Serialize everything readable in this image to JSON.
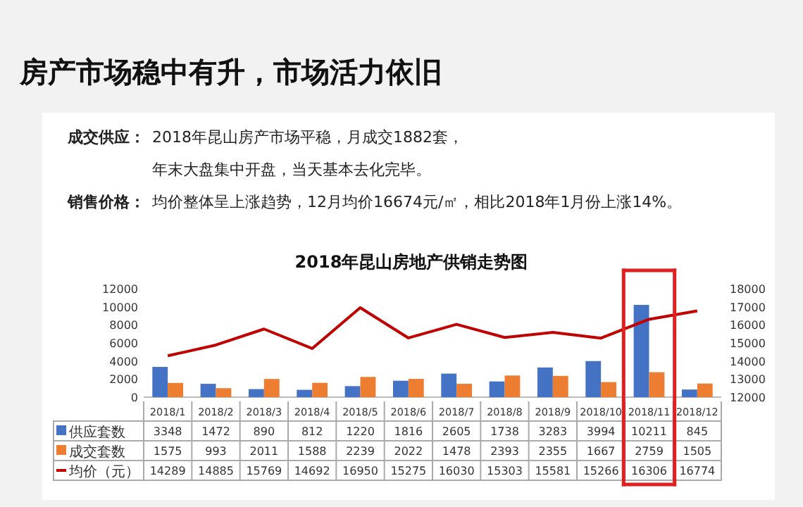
{
  "chart_data": {
    "type": "bar",
    "title": "2018年昆山房地产供销走势图",
    "annotations": [
      "房产市场稳中有升，市场活力依旧",
      "成交供应：",
      "2018年昆山房产市场平稳，月成交1882套，",
      "年末大盘集中开盘，当天基本去化完毕。",
      "销售价格：",
      "均价整体呈上涨趋势，12月均价16674元/㎡，相比2018年1月份上涨14%。"
    ],
    "categories": [
      "2018/1",
      "2018/2",
      "2018/3",
      "2018/4",
      "2018/5",
      "2018/6",
      "2018/7",
      "2018/8",
      "2018/9",
      "2018/10",
      "2018/11",
      "2018/12"
    ],
    "series": [
      {
        "name": "供应套数",
        "color": "#4472c4",
        "values": [
          3348,
          1472,
          890,
          812,
          1220,
          1816,
          2605,
          1738,
          3283,
          3994,
          10211,
          845
        ]
      },
      {
        "name": "成交套数",
        "color": "#ed7d31",
        "values": [
          1575,
          993,
          2011,
          1588,
          2239,
          2022,
          1478,
          2393,
          2355,
          1667,
          2759,
          1505
        ]
      },
      {
        "name": "均价（元）",
        "color": "#c00000",
        "type": "line",
        "axis": "y2",
        "values": [
          14289,
          14885,
          15769,
          14692,
          16950,
          15275,
          16030,
          15303,
          15581,
          15266,
          16306,
          16774
        ]
      }
    ],
    "ylim": [
      0,
      12000
    ],
    "yticks": [
      0,
      2000,
      4000,
      6000,
      8000,
      10000,
      12000
    ],
    "y2lim": [
      12000,
      18000
    ],
    "y2ticks": [
      12000,
      13000,
      14000,
      15000,
      16000,
      17000,
      18000
    ],
    "data_labels": true,
    "legend": "bottom",
    "grid": false
  }
}
